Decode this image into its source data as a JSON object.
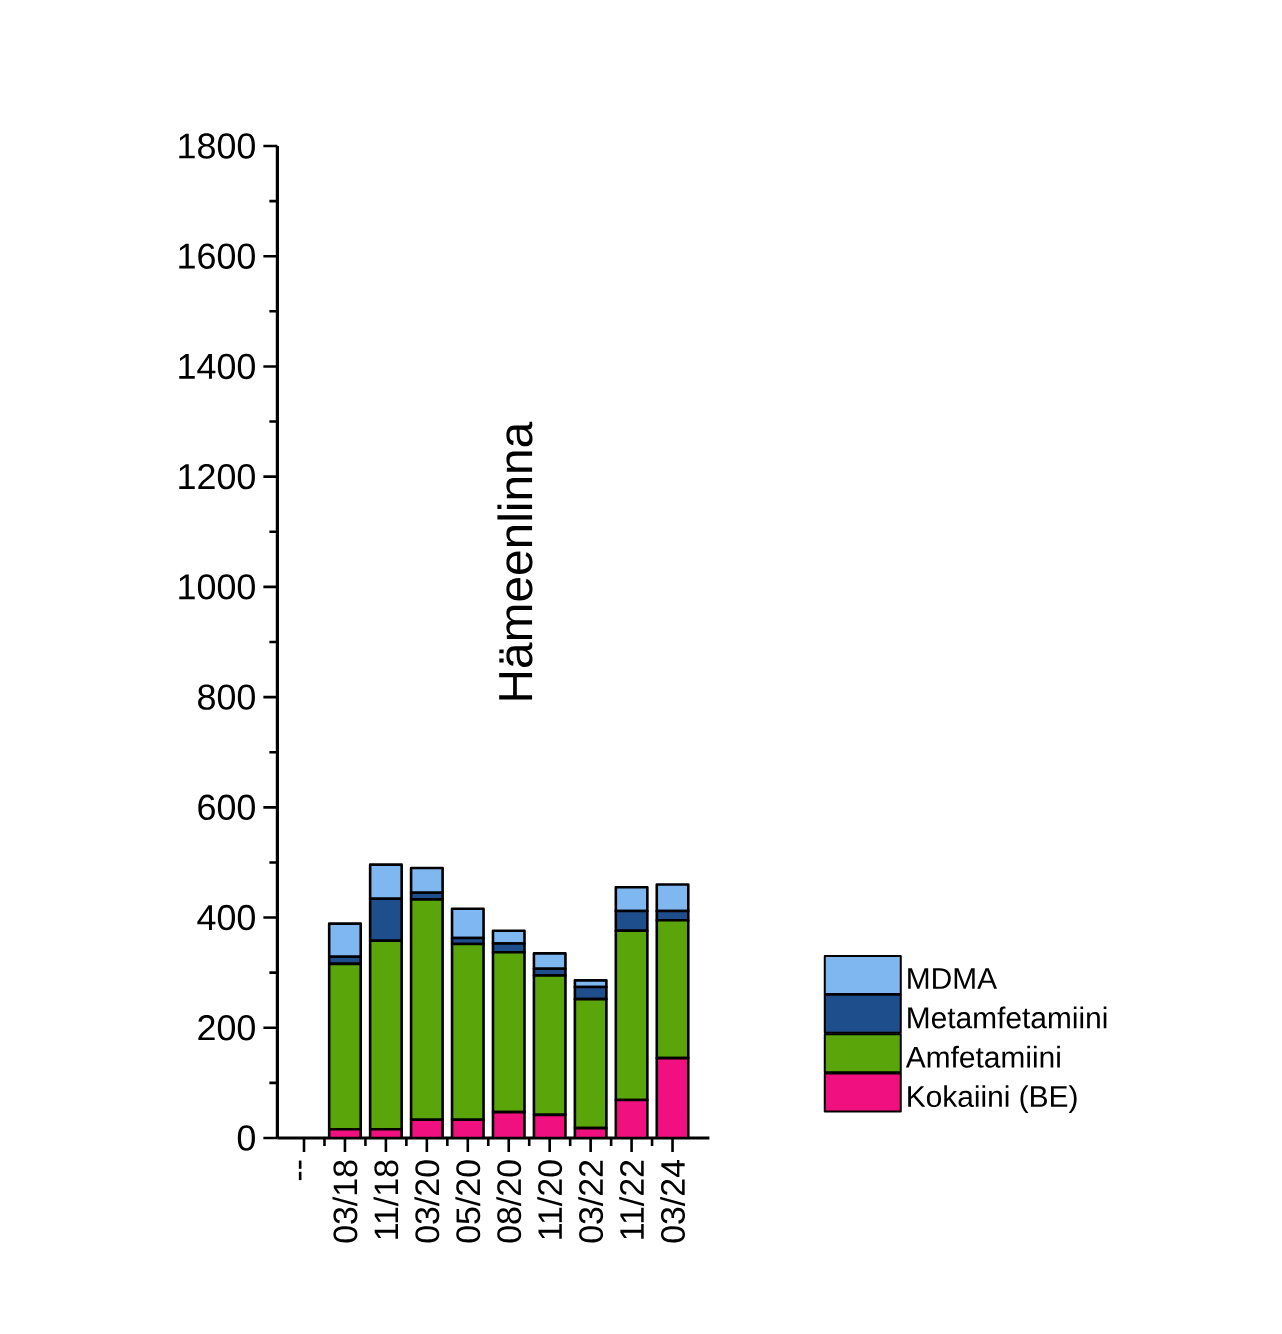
{
  "chart_data": {
    "type": "bar",
    "stacked": true,
    "title": "Hämeenlinna",
    "categories": [
      "--",
      "03/18",
      "11/18",
      "03/20",
      "05/20",
      "08/20",
      "11/20",
      "03/22",
      "11/22",
      "03/24"
    ],
    "series": [
      {
        "name": "Kokaiini (BE)",
        "color": "#f0107f",
        "values": [
          null,
          16,
          16,
          33,
          33,
          47,
          42,
          18,
          69,
          145
        ]
      },
      {
        "name": "Amfetamiini",
        "color": "#5aa50a",
        "values": [
          null,
          300,
          342,
          400,
          319,
          290,
          253,
          234,
          307,
          250
        ]
      },
      {
        "name": "Metamfetamiini",
        "color": "#1f4e8c",
        "values": [
          null,
          13,
          76,
          12,
          11,
          16,
          12,
          22,
          36,
          17
        ]
      },
      {
        "name": "MDMA",
        "color": "#7fb8f0",
        "values": [
          null,
          60,
          62,
          45,
          53,
          23,
          28,
          12,
          43,
          48
        ]
      }
    ],
    "ylim": [
      0,
      1800
    ],
    "yticks": [
      0,
      200,
      400,
      600,
      800,
      1000,
      1200,
      1400,
      1600,
      1800
    ],
    "grid": false,
    "legend": "right"
  }
}
